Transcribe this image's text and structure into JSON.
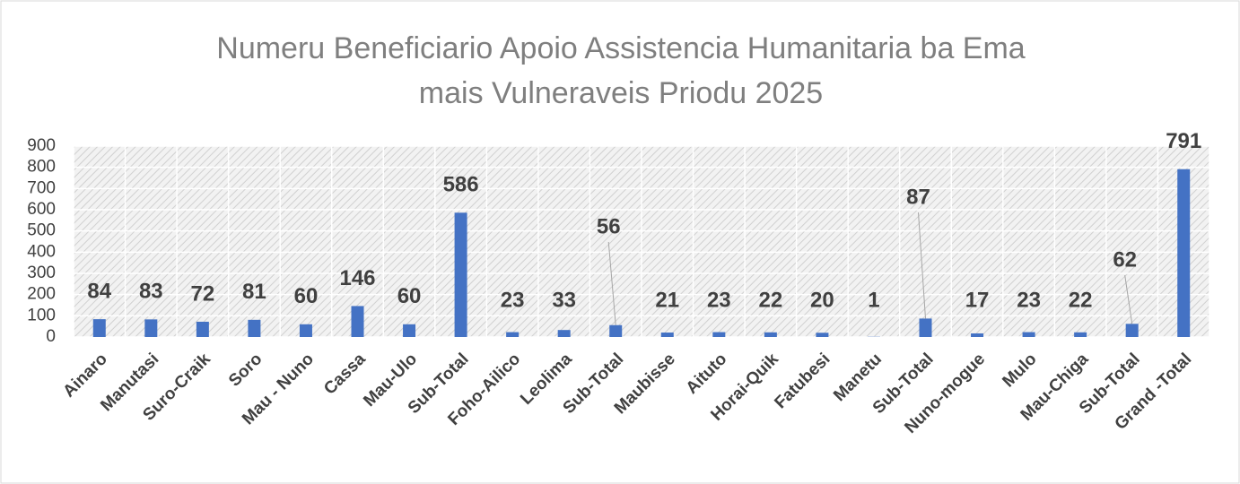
{
  "chart_data": {
    "type": "bar",
    "title": [
      "Numeru Beneficiario  Apoio Assistencia Humanitaria ba Ema",
      "mais Vulneraveis Priodu 2025"
    ],
    "categories": [
      "Ainaro",
      "Manutasi",
      "Suro-Craik",
      "Soro",
      "Mau - Nuno",
      "Cassa",
      "Mau-Ulo",
      "Sub-Total",
      "Foho-Ailico",
      "Leolima",
      "Sub-Total",
      "Maubisse",
      "Aituto",
      "Horai-Quik",
      "Fatubesi",
      "Manetu",
      "Sub-Total",
      "Nuno-mogue",
      "Mulo",
      "Mau-Chiga",
      "Sub-Total",
      "Grand -Total"
    ],
    "values": [
      84,
      83,
      72,
      81,
      60,
      146,
      60,
      586,
      23,
      33,
      56,
      21,
      23,
      22,
      20,
      1,
      87,
      17,
      23,
      22,
      62,
      791
    ],
    "color": "#4472c4",
    "ylim": [
      0,
      900
    ],
    "yticks": [
      0,
      100,
      200,
      300,
      400,
      500,
      600,
      700,
      800,
      900
    ],
    "grid": true
  }
}
